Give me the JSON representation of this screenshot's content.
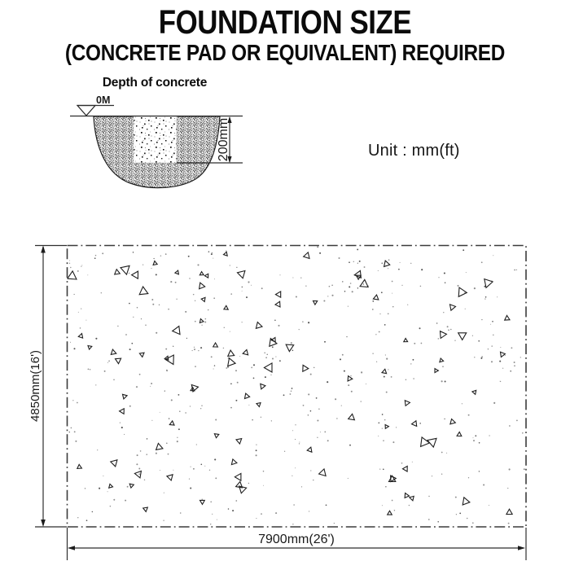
{
  "header": {
    "title": "FOUNDATION SIZE",
    "subtitle": "(CONCRETE PAD OR EQUIVALENT) REQUIRED"
  },
  "depth_figure": {
    "caption": "Depth of concrete",
    "ground_level_label": "0M",
    "depth_dimension": "200mm"
  },
  "unit_note": "Unit : mm(ft)",
  "plan": {
    "width_dimension": "7900mm(26')",
    "height_dimension": "4850mm(16')"
  },
  "texture": {
    "seed": 1337,
    "triangle_count": 96,
    "dot_count": 430
  },
  "colors": {
    "ink": "#111111",
    "line_gray": "#3f3f3f",
    "dot_gray": "#8f8f8f"
  }
}
